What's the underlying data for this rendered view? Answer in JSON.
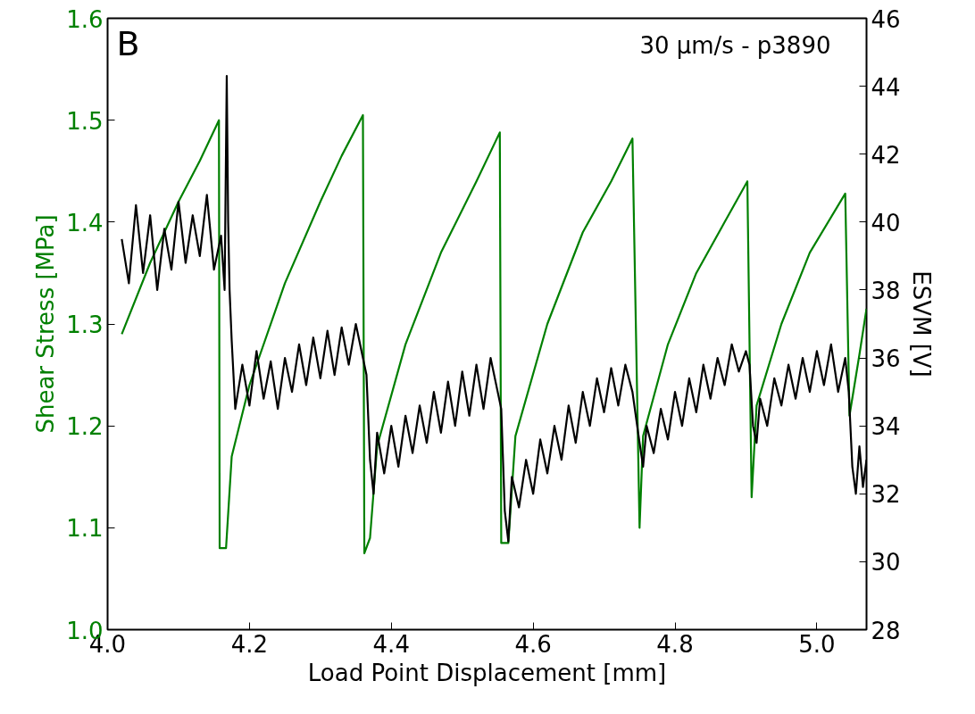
{
  "chart_data": {
    "type": "line",
    "xlabel": "Load Point Displacement [mm]",
    "ylabel": "Shear Stress [MPa]",
    "y2label": "ESVM [V]",
    "annotations": [
      "B",
      "30 μm/s - p3890"
    ],
    "xlim": [
      4.0,
      5.07
    ],
    "xticks": [
      {
        "value": 4.0,
        "label": "4.0"
      },
      {
        "value": 4.2,
        "label": "4.2"
      },
      {
        "value": 4.4,
        "label": "4.4"
      },
      {
        "value": 4.6,
        "label": "4.6"
      },
      {
        "value": 4.8,
        "label": "4.8"
      },
      {
        "value": 5.0,
        "label": "5.0"
      }
    ],
    "ylim": [
      1.0,
      1.6
    ],
    "yticks": [
      {
        "value": 1.0,
        "label": "1.0"
      },
      {
        "value": 1.1,
        "label": "1.1"
      },
      {
        "value": 1.2,
        "label": "1.2"
      },
      {
        "value": 1.3,
        "label": "1.3"
      },
      {
        "value": 1.4,
        "label": "1.4"
      },
      {
        "value": 1.5,
        "label": "1.5"
      },
      {
        "value": 1.6,
        "label": "1.6"
      }
    ],
    "y2lim": [
      28,
      46
    ],
    "y2ticks": [
      28,
      30,
      32,
      34,
      36,
      38,
      40,
      42,
      44,
      46
    ],
    "grid": false,
    "marker": "none",
    "line_style": "solid",
    "series": [
      {
        "color": "#008000",
        "x": [
          4.02,
          4.06,
          4.1,
          4.13,
          4.157,
          4.158,
          4.167,
          4.175,
          4.2,
          4.25,
          4.3,
          4.33,
          4.36,
          4.362,
          4.37,
          4.38,
          4.42,
          4.47,
          4.52,
          4.553,
          4.555,
          4.565,
          4.575,
          4.62,
          4.67,
          4.71,
          4.74,
          4.75,
          4.755,
          4.79,
          4.83,
          4.87,
          4.902,
          4.908,
          4.915,
          4.95,
          4.99,
          5.04,
          5.046,
          5.06,
          5.07
        ],
        "values": [
          1.29,
          1.36,
          1.42,
          1.46,
          1.5,
          1.08,
          1.08,
          1.17,
          1.24,
          1.34,
          1.42,
          1.465,
          1.505,
          1.075,
          1.09,
          1.18,
          1.28,
          1.37,
          1.44,
          1.488,
          1.085,
          1.085,
          1.19,
          1.3,
          1.39,
          1.44,
          1.482,
          1.1,
          1.19,
          1.28,
          1.35,
          1.4,
          1.44,
          1.13,
          1.22,
          1.3,
          1.37,
          1.428,
          1.21,
          1.27,
          1.315
        ]
      },
      {
        "color": "#000000",
        "axis": "y2",
        "x": [
          4.02,
          4.03,
          4.04,
          4.05,
          4.06,
          4.07,
          4.08,
          4.09,
          4.1,
          4.11,
          4.12,
          4.13,
          4.14,
          4.15,
          4.16,
          4.165,
          4.168,
          4.17,
          4.172,
          4.175,
          4.18,
          4.19,
          4.2,
          4.21,
          4.22,
          4.23,
          4.24,
          4.25,
          4.26,
          4.27,
          4.28,
          4.29,
          4.3,
          4.31,
          4.32,
          4.33,
          4.34,
          4.35,
          4.36,
          4.365,
          4.37,
          4.375,
          4.38,
          4.39,
          4.4,
          4.41,
          4.42,
          4.43,
          4.44,
          4.45,
          4.46,
          4.47,
          4.48,
          4.49,
          4.5,
          4.51,
          4.52,
          4.53,
          4.54,
          4.55,
          4.555,
          4.56,
          4.565,
          4.57,
          4.58,
          4.59,
          4.6,
          4.61,
          4.62,
          4.63,
          4.64,
          4.65,
          4.66,
          4.67,
          4.68,
          4.69,
          4.7,
          4.71,
          4.72,
          4.73,
          4.74,
          4.75,
          4.755,
          4.76,
          4.77,
          4.78,
          4.79,
          4.8,
          4.81,
          4.82,
          4.83,
          4.84,
          4.85,
          4.86,
          4.87,
          4.88,
          4.89,
          4.9,
          4.905,
          4.91,
          4.915,
          4.92,
          4.93,
          4.94,
          4.95,
          4.96,
          4.97,
          4.98,
          4.99,
          5.0,
          5.01,
          5.02,
          5.03,
          5.04,
          5.045,
          5.05,
          5.055,
          5.06,
          5.065,
          5.07
        ],
        "values": [
          39.5,
          38.2,
          40.5,
          38.5,
          40.2,
          38.0,
          39.8,
          38.6,
          40.6,
          38.8,
          40.2,
          39.0,
          40.8,
          38.6,
          39.6,
          38.0,
          44.3,
          40.0,
          38.0,
          36.5,
          34.5,
          35.8,
          34.6,
          36.2,
          34.8,
          35.9,
          34.5,
          36.0,
          35.0,
          36.4,
          35.2,
          36.6,
          35.4,
          36.8,
          35.5,
          36.9,
          35.8,
          37.0,
          36.0,
          35.5,
          33.0,
          32.0,
          33.8,
          32.6,
          34.0,
          32.8,
          34.3,
          33.2,
          34.6,
          33.5,
          35.0,
          33.8,
          35.3,
          34.0,
          35.6,
          34.3,
          35.8,
          34.5,
          36.0,
          35.0,
          34.5,
          31.5,
          30.6,
          32.5,
          31.6,
          33.0,
          32.0,
          33.6,
          32.6,
          34.0,
          33.0,
          34.6,
          33.5,
          35.0,
          34.0,
          35.4,
          34.4,
          35.7,
          34.6,
          35.8,
          35.0,
          33.5,
          32.8,
          34.0,
          33.2,
          34.5,
          33.6,
          35.0,
          34.0,
          35.4,
          34.4,
          35.8,
          34.8,
          36.0,
          35.2,
          36.4,
          35.6,
          36.2,
          35.8,
          34.0,
          33.5,
          34.8,
          34.0,
          35.4,
          34.6,
          35.8,
          34.8,
          36.0,
          35.0,
          36.2,
          35.2,
          36.4,
          35.0,
          36.0,
          35.0,
          32.8,
          32.0,
          33.4,
          32.2,
          33.0
        ]
      }
    ]
  }
}
